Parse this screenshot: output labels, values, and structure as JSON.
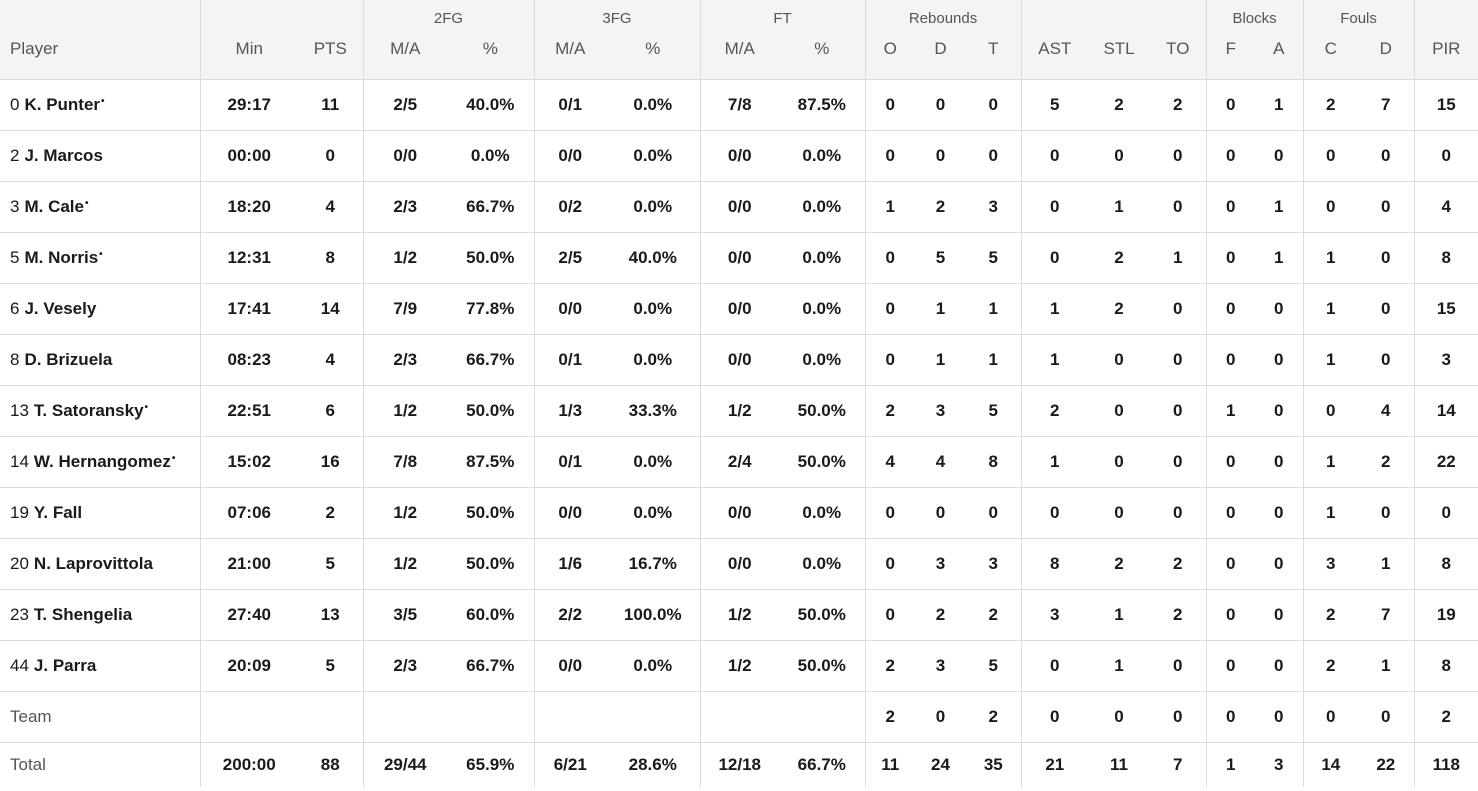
{
  "groups": {
    "fg2": "2FG",
    "fg3": "3FG",
    "ft": "FT",
    "rebounds": "Rebounds",
    "blocks": "Blocks",
    "fouls": "Fouls"
  },
  "columns": {
    "player": "Player",
    "min": "Min",
    "pts": "PTS",
    "fg2_ma": "M/A",
    "fg2_pct": "%",
    "fg3_ma": "M/A",
    "fg3_pct": "%",
    "ft_ma": "M/A",
    "ft_pct": "%",
    "reb_o": "O",
    "reb_d": "D",
    "reb_t": "T",
    "ast": "AST",
    "stl": "STL",
    "to": "TO",
    "blk_f": "F",
    "blk_a": "A",
    "foul_c": "C",
    "foul_d": "D",
    "pir": "PIR"
  },
  "starter_mark": "•",
  "rows": [
    {
      "num": "0",
      "name": "K. Punter",
      "starter": true,
      "min": "29:17",
      "pts": "11",
      "fg2_ma": "2/5",
      "fg2_pct": "40.0%",
      "fg3_ma": "0/1",
      "fg3_pct": "0.0%",
      "ft_ma": "7/8",
      "ft_pct": "87.5%",
      "reb_o": "0",
      "reb_d": "0",
      "reb_t": "0",
      "ast": "5",
      "stl": "2",
      "to": "2",
      "blk_f": "0",
      "blk_a": "1",
      "foul_c": "2",
      "foul_d": "7",
      "pir": "15"
    },
    {
      "num": "2",
      "name": "J. Marcos",
      "starter": false,
      "min": "00:00",
      "pts": "0",
      "fg2_ma": "0/0",
      "fg2_pct": "0.0%",
      "fg3_ma": "0/0",
      "fg3_pct": "0.0%",
      "ft_ma": "0/0",
      "ft_pct": "0.0%",
      "reb_o": "0",
      "reb_d": "0",
      "reb_t": "0",
      "ast": "0",
      "stl": "0",
      "to": "0",
      "blk_f": "0",
      "blk_a": "0",
      "foul_c": "0",
      "foul_d": "0",
      "pir": "0"
    },
    {
      "num": "3",
      "name": "M. Cale",
      "starter": true,
      "min": "18:20",
      "pts": "4",
      "fg2_ma": "2/3",
      "fg2_pct": "66.7%",
      "fg3_ma": "0/2",
      "fg3_pct": "0.0%",
      "ft_ma": "0/0",
      "ft_pct": "0.0%",
      "reb_o": "1",
      "reb_d": "2",
      "reb_t": "3",
      "ast": "0",
      "stl": "1",
      "to": "0",
      "blk_f": "0",
      "blk_a": "1",
      "foul_c": "0",
      "foul_d": "0",
      "pir": "4"
    },
    {
      "num": "5",
      "name": "M. Norris",
      "starter": true,
      "min": "12:31",
      "pts": "8",
      "fg2_ma": "1/2",
      "fg2_pct": "50.0%",
      "fg3_ma": "2/5",
      "fg3_pct": "40.0%",
      "ft_ma": "0/0",
      "ft_pct": "0.0%",
      "reb_o": "0",
      "reb_d": "5",
      "reb_t": "5",
      "ast": "0",
      "stl": "2",
      "to": "1",
      "blk_f": "0",
      "blk_a": "1",
      "foul_c": "1",
      "foul_d": "0",
      "pir": "8"
    },
    {
      "num": "6",
      "name": "J. Vesely",
      "starter": false,
      "min": "17:41",
      "pts": "14",
      "fg2_ma": "7/9",
      "fg2_pct": "77.8%",
      "fg3_ma": "0/0",
      "fg3_pct": "0.0%",
      "ft_ma": "0/0",
      "ft_pct": "0.0%",
      "reb_o": "0",
      "reb_d": "1",
      "reb_t": "1",
      "ast": "1",
      "stl": "2",
      "to": "0",
      "blk_f": "0",
      "blk_a": "0",
      "foul_c": "1",
      "foul_d": "0",
      "pir": "15"
    },
    {
      "num": "8",
      "name": "D. Brizuela",
      "starter": false,
      "min": "08:23",
      "pts": "4",
      "fg2_ma": "2/3",
      "fg2_pct": "66.7%",
      "fg3_ma": "0/1",
      "fg3_pct": "0.0%",
      "ft_ma": "0/0",
      "ft_pct": "0.0%",
      "reb_o": "0",
      "reb_d": "1",
      "reb_t": "1",
      "ast": "1",
      "stl": "0",
      "to": "0",
      "blk_f": "0",
      "blk_a": "0",
      "foul_c": "1",
      "foul_d": "0",
      "pir": "3"
    },
    {
      "num": "13",
      "name": "T. Satoransky",
      "starter": true,
      "min": "22:51",
      "pts": "6",
      "fg2_ma": "1/2",
      "fg2_pct": "50.0%",
      "fg3_ma": "1/3",
      "fg3_pct": "33.3%",
      "ft_ma": "1/2",
      "ft_pct": "50.0%",
      "reb_o": "2",
      "reb_d": "3",
      "reb_t": "5",
      "ast": "2",
      "stl": "0",
      "to": "0",
      "blk_f": "1",
      "blk_a": "0",
      "foul_c": "0",
      "foul_d": "4",
      "pir": "14"
    },
    {
      "num": "14",
      "name": "W. Hernangomez",
      "starter": true,
      "min": "15:02",
      "pts": "16",
      "fg2_ma": "7/8",
      "fg2_pct": "87.5%",
      "fg3_ma": "0/1",
      "fg3_pct": "0.0%",
      "ft_ma": "2/4",
      "ft_pct": "50.0%",
      "reb_o": "4",
      "reb_d": "4",
      "reb_t": "8",
      "ast": "1",
      "stl": "0",
      "to": "0",
      "blk_f": "0",
      "blk_a": "0",
      "foul_c": "1",
      "foul_d": "2",
      "pir": "22"
    },
    {
      "num": "19",
      "name": "Y. Fall",
      "starter": false,
      "min": "07:06",
      "pts": "2",
      "fg2_ma": "1/2",
      "fg2_pct": "50.0%",
      "fg3_ma": "0/0",
      "fg3_pct": "0.0%",
      "ft_ma": "0/0",
      "ft_pct": "0.0%",
      "reb_o": "0",
      "reb_d": "0",
      "reb_t": "0",
      "ast": "0",
      "stl": "0",
      "to": "0",
      "blk_f": "0",
      "blk_a": "0",
      "foul_c": "1",
      "foul_d": "0",
      "pir": "0"
    },
    {
      "num": "20",
      "name": "N. Laprovittola",
      "starter": false,
      "min": "21:00",
      "pts": "5",
      "fg2_ma": "1/2",
      "fg2_pct": "50.0%",
      "fg3_ma": "1/6",
      "fg3_pct": "16.7%",
      "ft_ma": "0/0",
      "ft_pct": "0.0%",
      "reb_o": "0",
      "reb_d": "3",
      "reb_t": "3",
      "ast": "8",
      "stl": "2",
      "to": "2",
      "blk_f": "0",
      "blk_a": "0",
      "foul_c": "3",
      "foul_d": "1",
      "pir": "8"
    },
    {
      "num": "23",
      "name": "T. Shengelia",
      "starter": false,
      "min": "27:40",
      "pts": "13",
      "fg2_ma": "3/5",
      "fg2_pct": "60.0%",
      "fg3_ma": "2/2",
      "fg3_pct": "100.0%",
      "ft_ma": "1/2",
      "ft_pct": "50.0%",
      "reb_o": "0",
      "reb_d": "2",
      "reb_t": "2",
      "ast": "3",
      "stl": "1",
      "to": "2",
      "blk_f": "0",
      "blk_a": "0",
      "foul_c": "2",
      "foul_d": "7",
      "pir": "19"
    },
    {
      "num": "44",
      "name": "J. Parra",
      "starter": false,
      "min": "20:09",
      "pts": "5",
      "fg2_ma": "2/3",
      "fg2_pct": "66.7%",
      "fg3_ma": "0/0",
      "fg3_pct": "0.0%",
      "ft_ma": "1/2",
      "ft_pct": "50.0%",
      "reb_o": "2",
      "reb_d": "3",
      "reb_t": "5",
      "ast": "0",
      "stl": "1",
      "to": "0",
      "blk_f": "0",
      "blk_a": "0",
      "foul_c": "2",
      "foul_d": "1",
      "pir": "8"
    }
  ],
  "team": {
    "label": "Team",
    "min": "",
    "pts": "",
    "fg2_ma": "",
    "fg2_pct": "",
    "fg3_ma": "",
    "fg3_pct": "",
    "ft_ma": "",
    "ft_pct": "",
    "reb_o": "2",
    "reb_d": "0",
    "reb_t": "2",
    "ast": "0",
    "stl": "0",
    "to": "0",
    "blk_f": "0",
    "blk_a": "0",
    "foul_c": "0",
    "foul_d": "0",
    "pir": "2"
  },
  "total": {
    "label": "Total",
    "min": "200:00",
    "pts": "88",
    "fg2_ma": "29/44",
    "fg2_pct": "65.9%",
    "fg3_ma": "6/21",
    "fg3_pct": "28.6%",
    "ft_ma": "12/18",
    "ft_pct": "66.7%",
    "reb_o": "11",
    "reb_d": "24",
    "reb_t": "35",
    "ast": "21",
    "stl": "11",
    "to": "7",
    "blk_f": "1",
    "blk_a": "3",
    "foul_c": "14",
    "foul_d": "22",
    "pir": "118"
  }
}
